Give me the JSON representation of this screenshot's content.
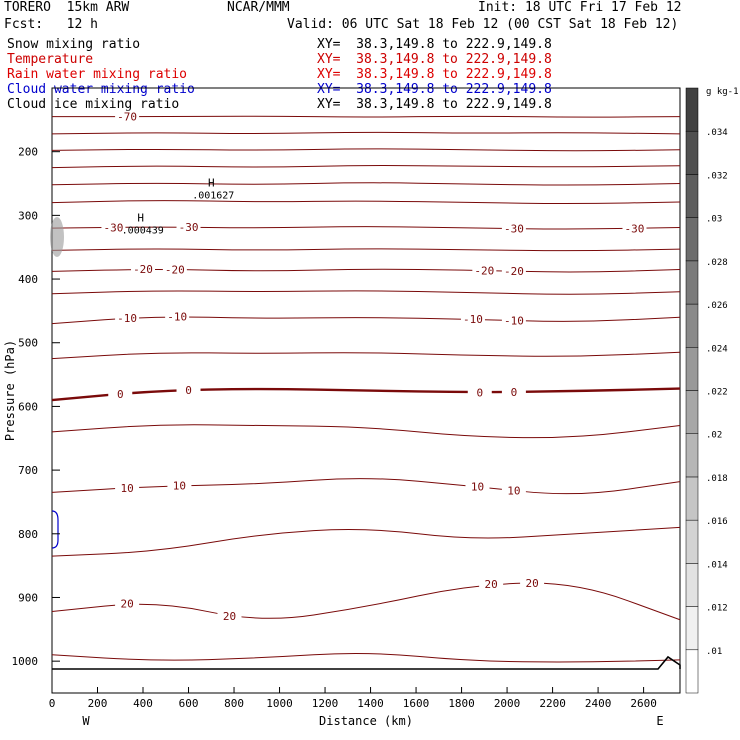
{
  "header": {
    "model": "TORERO  15km ARW",
    "org": "NCAR/MMM",
    "init": "Init: 18 UTC Fri 17 Feb 12",
    "fcst": "Fcst:   12 h",
    "valid": "Valid: 06 UTC Sat 18 Feb 12 (00 CST Sat 18 Feb 12)"
  },
  "fields": [
    {
      "name": "Snow mixing ratio",
      "xy": "XY=  38.3,149.8 to 222.9,149.8",
      "color": "#000000"
    },
    {
      "name": "Temperature",
      "xy": "XY=  38.3,149.8 to 222.9,149.8",
      "color": "#cc0000"
    },
    {
      "name": "Rain water mixing ratio",
      "xy": "XY=  38.3,149.8 to 222.9,149.8",
      "color": "#dd0000"
    },
    {
      "name": "Cloud water mixing ratio",
      "xy": "XY=  38.3,149.8 to 222.9,149.8",
      "color": "#0000cc"
    },
    {
      "name": "Cloud ice mixing ratio",
      "xy": "XY=  38.3,149.8 to 222.9,149.8",
      "color": "#000000"
    }
  ],
  "chart_data": {
    "type": "cross-section contour",
    "xlabel": "Distance (km)",
    "ylabel": "Pressure (hPa)",
    "xlim": [
      0,
      2760
    ],
    "ylim": [
      1050,
      100
    ],
    "x_ticks": [
      "0",
      "200",
      "400",
      "600",
      "800",
      "1000",
      "1200",
      "1400",
      "1600",
      "1800",
      "2000",
      "2200",
      "2400",
      "2600"
    ],
    "y_ticks": [
      "200",
      "300",
      "400",
      "500",
      "600",
      "700",
      "800",
      "900",
      "1000"
    ],
    "x_end_labels": {
      "left": "W",
      "right": "E"
    },
    "isotherms": [
      {
        "label": "-70",
        "p": [
          145,
          145,
          144,
          146,
          144,
          146,
          145
        ],
        "labels_at": [
          {
            "x": 330,
            "text": "-70"
          }
        ]
      },
      {
        "label": "",
        "p": [
          172,
          170,
          172,
          169,
          171,
          170,
          172
        ],
        "labels_at": []
      },
      {
        "label": "",
        "p": [
          198,
          196,
          198,
          195,
          197,
          199,
          197
        ],
        "labels_at": []
      },
      {
        "label": "",
        "p": [
          225,
          222,
          225,
          221,
          223,
          224,
          222
        ],
        "labels_at": []
      },
      {
        "label": "",
        "p": [
          252,
          249,
          252,
          248,
          251,
          253,
          250
        ],
        "labels_at": []
      },
      {
        "label": "",
        "p": [
          280,
          276,
          279,
          277,
          280,
          282,
          279
        ],
        "labels_at": []
      },
      {
        "label": "-30",
        "p": [
          320,
          318,
          320,
          317,
          320,
          322,
          319
        ],
        "labels_at": [
          {
            "x": 270,
            "text": "-30"
          },
          {
            "x": 600,
            "text": "-30"
          },
          {
            "x": 2030,
            "text": "-30"
          },
          {
            "x": 2560,
            "text": "-30"
          }
        ]
      },
      {
        "label": "",
        "p": [
          355,
          352,
          355,
          352,
          354,
          356,
          353
        ],
        "labels_at": []
      },
      {
        "label": "-20",
        "p": [
          388,
          384,
          388,
          384,
          386,
          390,
          385
        ],
        "labels_at": [
          {
            "x": 400,
            "text": "-20"
          },
          {
            "x": 540,
            "text": "-20"
          },
          {
            "x": 1900,
            "text": "-20"
          },
          {
            "x": 2030,
            "text": "-20"
          }
        ]
      },
      {
        "label": "",
        "p": [
          423,
          418,
          420,
          418,
          421,
          425,
          420
        ],
        "labels_at": []
      },
      {
        "label": "-10",
        "p": [
          470,
          458,
          462,
          460,
          463,
          468,
          460
        ],
        "labels_at": [
          {
            "x": 330,
            "text": "-10"
          },
          {
            "x": 550,
            "text": "-10"
          },
          {
            "x": 1850,
            "text": "-10"
          },
          {
            "x": 2030,
            "text": "-10"
          }
        ]
      },
      {
        "label": "",
        "p": [
          525,
          515,
          517,
          515,
          520,
          522,
          515
        ],
        "labels_at": []
      },
      {
        "label": "0",
        "p": [
          590,
          575,
          572,
          575,
          578,
          576,
          572
        ],
        "labels_at": [
          {
            "x": 300,
            "text": "0"
          },
          {
            "x": 600,
            "text": "0"
          },
          {
            "x": 1880,
            "text": "0"
          },
          {
            "x": 2030,
            "text": "0"
          }
        ]
      },
      {
        "label": "",
        "p": [
          640,
          628,
          630,
          632,
          648,
          650,
          630
        ],
        "labels_at": []
      },
      {
        "label": "10",
        "p": [
          735,
          725,
          722,
          710,
          725,
          742,
          718
        ],
        "labels_at": [
          {
            "x": 330,
            "text": "10"
          },
          {
            "x": 560,
            "text": "10"
          },
          {
            "x": 1870,
            "text": "10"
          },
          {
            "x": 2030,
            "text": "10"
          }
        ]
      },
      {
        "label": "",
        "p": [
          835,
          828,
          800,
          790,
          810,
          800,
          790
        ],
        "labels_at": []
      },
      {
        "label": "20",
        "p": [
          922,
          905,
          940,
          915,
          880,
          875,
          935
        ],
        "labels_at": [
          {
            "x": 330,
            "text": "20"
          },
          {
            "x": 780,
            "text": "20"
          },
          {
            "x": 1930,
            "text": "20"
          },
          {
            "x": 2110,
            "text": "20"
          }
        ]
      },
      {
        "label": "",
        "p": [
          990,
          1000,
          995,
          985,
          1000,
          1002,
          998
        ],
        "labels_at": []
      }
    ],
    "highs": [
      {
        "x": 700,
        "p": 255,
        "text": "H",
        "value": ".001627"
      },
      {
        "x": 390,
        "p": 310,
        "text": "H",
        "value": ".000439"
      }
    ],
    "colorbar": {
      "unit": "g kg-1",
      "levels": [
        ".01",
        ".012",
        ".014",
        ".016",
        ".018",
        ".02",
        ".022",
        ".024",
        ".026",
        ".028",
        ".03",
        ".032",
        ".034"
      ]
    }
  }
}
